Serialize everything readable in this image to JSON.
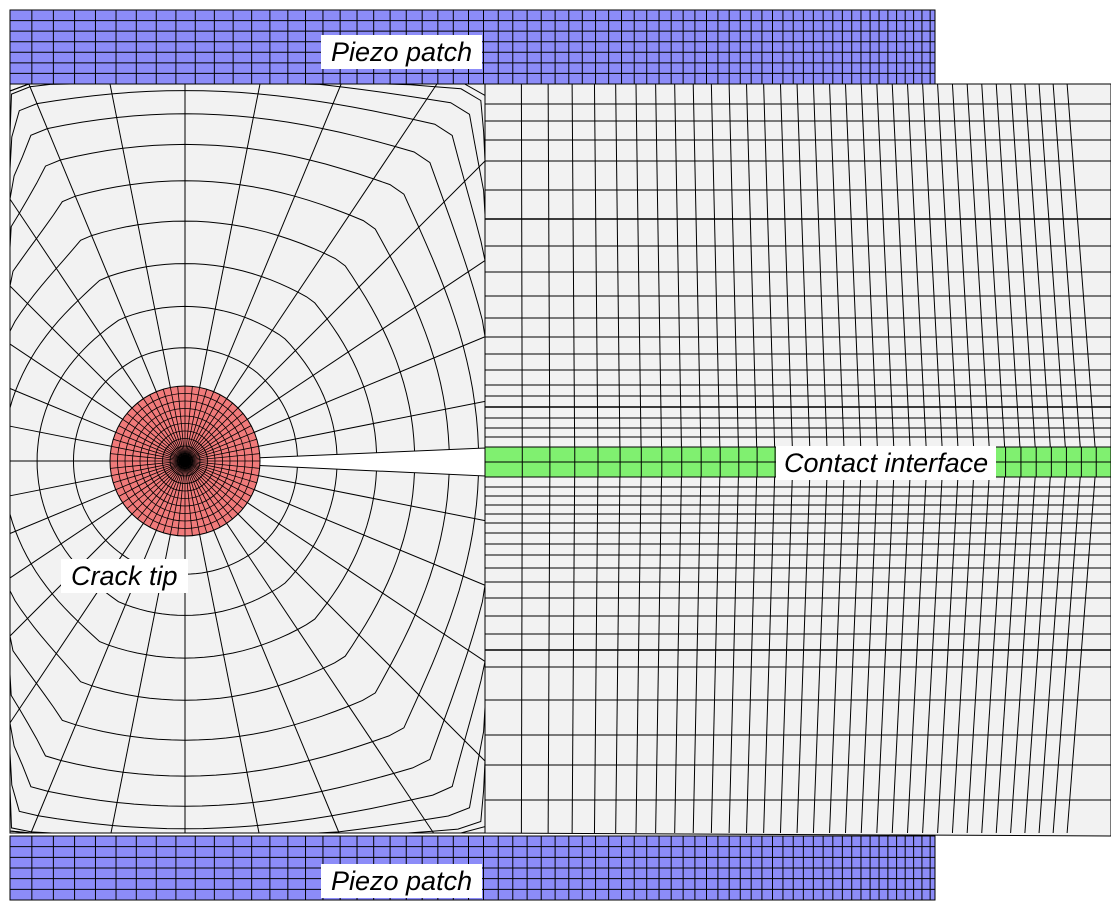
{
  "labels": {
    "piezo_top": "Piezo patch",
    "piezo_bottom": "Piezo patch",
    "contact": "Contact interface",
    "crack_tip": "Crack tip"
  },
  "colors": {
    "piezo": "#8c8cf8",
    "crack_tip_region": "#f07a7a",
    "contact_interface": "#80f070",
    "domain_fill": "#f2f2f2",
    "mesh_line": "#000000",
    "background": "#ffffff"
  }
}
